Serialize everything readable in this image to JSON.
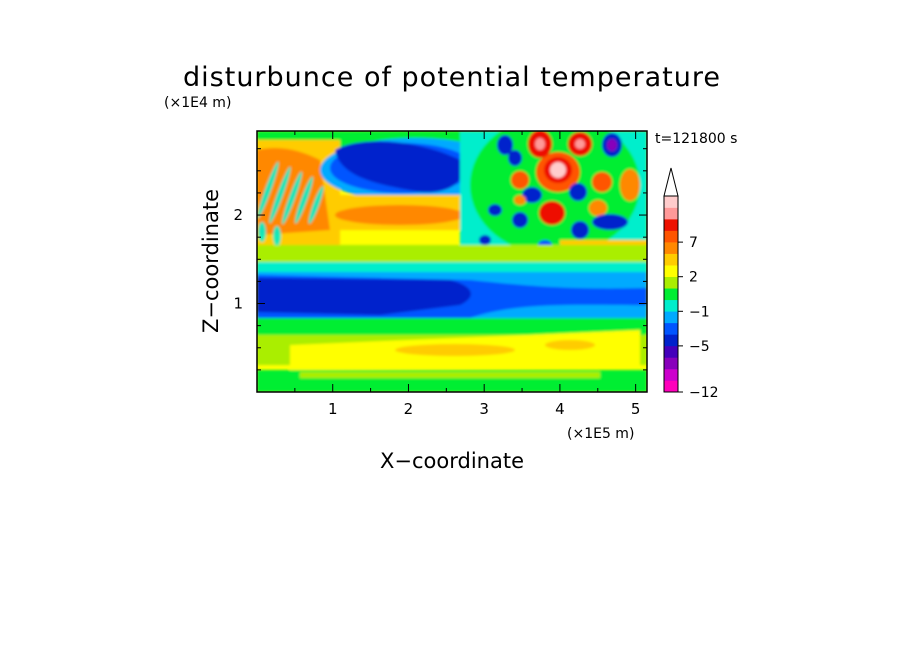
{
  "chart_data": {
    "type": "heatmap",
    "title": "disturbunce of potential temperature",
    "xlabel": "X−coordinate",
    "ylabel": "Z−coordinate",
    "x_scale_note": "(×1E5 m)",
    "y_scale_note": "(×1E4 m)",
    "time_label": "t=121800 s",
    "xlim": [
      0,
      5.15
    ],
    "ylim": [
      0,
      2.95
    ],
    "x_ticks": [
      1,
      2,
      3,
      4,
      5
    ],
    "y_ticks": [
      1,
      2
    ],
    "x_tick_labels": [
      "1",
      "2",
      "3",
      "4",
      "5"
    ],
    "y_tick_labels": [
      "1",
      "2"
    ],
    "colorbar": {
      "levels": [
        -12,
        -11,
        -9,
        -7,
        -5,
        -4,
        -3,
        -1,
        0,
        1,
        2,
        3,
        5,
        7,
        8,
        9
      ],
      "labels": [
        "−12",
        "−5",
        "−1",
        "2",
        "7"
      ],
      "label_values": [
        -12,
        -5,
        -1,
        2,
        7
      ],
      "colors": [
        "#ff00bb",
        "#cc00cc",
        "#8800bb",
        "#4400bb",
        "#0022cc",
        "#0055ff",
        "#00aaff",
        "#00eecc",
        "#00ee33",
        "#aaee00",
        "#ffff00",
        "#ffcc00",
        "#ff8800",
        "#ff5500",
        "#ee1100",
        "#ff9999",
        "#ffcccc"
      ],
      "extend": "max"
    }
  }
}
